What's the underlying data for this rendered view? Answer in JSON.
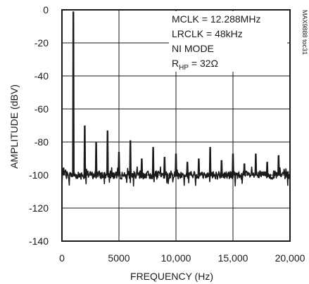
{
  "chart_data": {
    "type": "line",
    "title": "",
    "xlabel": "FREQUENCY (Hz)",
    "ylabel": "AMPLITUDE (dBV)",
    "xlim": [
      0,
      20000
    ],
    "ylim": [
      -140,
      0
    ],
    "xticks": [
      0,
      5000,
      10000,
      15000,
      20000
    ],
    "xtick_labels": [
      "0",
      "5000",
      "10,000",
      "15,000",
      "20,000"
    ],
    "yticks": [
      0,
      -20,
      -40,
      -60,
      -80,
      -100,
      -120,
      -140
    ],
    "ytick_labels": [
      "0",
      "-20",
      "-40",
      "-60",
      "-80",
      "-100",
      "-120",
      "-140"
    ],
    "grid": true,
    "annotations": [
      {
        "prefix": "MCLK = 12.288MHz"
      },
      {
        "prefix": "LRCLK = 48kHz"
      },
      {
        "prefix": "NI MODE"
      },
      {
        "prefix": "R",
        "sub": "HP",
        "suffix": " = 32Ω"
      }
    ],
    "side_label": "MAX9888 toc31",
    "noise_floor_db": -100,
    "series": [
      {
        "harmonics": [
          {
            "x": 1000,
            "y": -1
          },
          {
            "x": 2000,
            "y": -70
          },
          {
            "x": 3000,
            "y": -80
          },
          {
            "x": 4000,
            "y": -73
          },
          {
            "x": 5000,
            "y": -86
          },
          {
            "x": 6000,
            "y": -79
          },
          {
            "x": 7000,
            "y": -90
          },
          {
            "x": 8000,
            "y": -83
          },
          {
            "x": 9000,
            "y": -89
          },
          {
            "x": 10000,
            "y": -87
          },
          {
            "x": 11000,
            "y": -92
          },
          {
            "x": 12000,
            "y": -90
          },
          {
            "x": 13000,
            "y": -83
          },
          {
            "x": 14000,
            "y": -91
          },
          {
            "x": 15000,
            "y": -87
          },
          {
            "x": 16000,
            "y": -93
          },
          {
            "x": 17000,
            "y": -87
          },
          {
            "x": 18000,
            "y": -92
          },
          {
            "x": 19000,
            "y": -88
          }
        ]
      }
    ]
  }
}
